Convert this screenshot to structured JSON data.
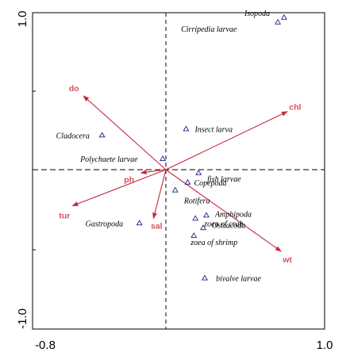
{
  "chart_data": {
    "type": "scatter",
    "title": "",
    "xlabel": "",
    "ylabel": "",
    "xlim": [
      -0.8,
      1.0
    ],
    "ylim": [
      -1.0,
      1.0
    ],
    "x_tick_labels": [
      "-0.8",
      "1.0"
    ],
    "y_tick_labels": [
      "1.0",
      "-1.0"
    ],
    "grid": false,
    "reference_lines": {
      "x": 0,
      "y": 0,
      "style": "dashed"
    },
    "arrow_color": "#c8283c",
    "label_color": "#d9505a",
    "environmental_vectors": [
      {
        "label": "do",
        "x": -0.53,
        "y": 0.47
      },
      {
        "label": "chl",
        "x": 0.78,
        "y": 0.37
      },
      {
        "label": "ph",
        "x": -0.16,
        "y": -0.02
      },
      {
        "label": "tur",
        "x": -0.6,
        "y": -0.23
      },
      {
        "label": "sal",
        "x": -0.08,
        "y": -0.31
      },
      {
        "label": "wt",
        "x": 0.74,
        "y": -0.52
      }
    ],
    "species_points": [
      {
        "label": "Isopoda",
        "x": 0.76,
        "y": 0.97
      },
      {
        "label": "Cirripedia larvae",
        "x": 0.72,
        "y": 0.94
      },
      {
        "label": "Cladocera",
        "x": -0.41,
        "y": 0.22
      },
      {
        "label": "Insect larva",
        "x": 0.13,
        "y": 0.26
      },
      {
        "label": "Polychaete larvae",
        "x": -0.02,
        "y": 0.07
      },
      {
        "label": "fish larvae",
        "x": 0.21,
        "y": -0.02
      },
      {
        "label": "Copepoda",
        "x": 0.14,
        "y": -0.08
      },
      {
        "label": "Rotifera",
        "x": 0.06,
        "y": -0.13
      },
      {
        "label": "Amphipoda",
        "x": 0.26,
        "y": -0.29
      },
      {
        "label": "zoea of crab",
        "x": 0.19,
        "y": -0.31
      },
      {
        "label": "Gastropoda",
        "x": -0.17,
        "y": -0.34
      },
      {
        "label": "Ostracoda",
        "x": 0.24,
        "y": -0.37
      },
      {
        "label": "zoea of shrimp",
        "x": 0.18,
        "y": -0.42
      },
      {
        "label": "bivalve larvae",
        "x": 0.25,
        "y": -0.69
      }
    ]
  }
}
